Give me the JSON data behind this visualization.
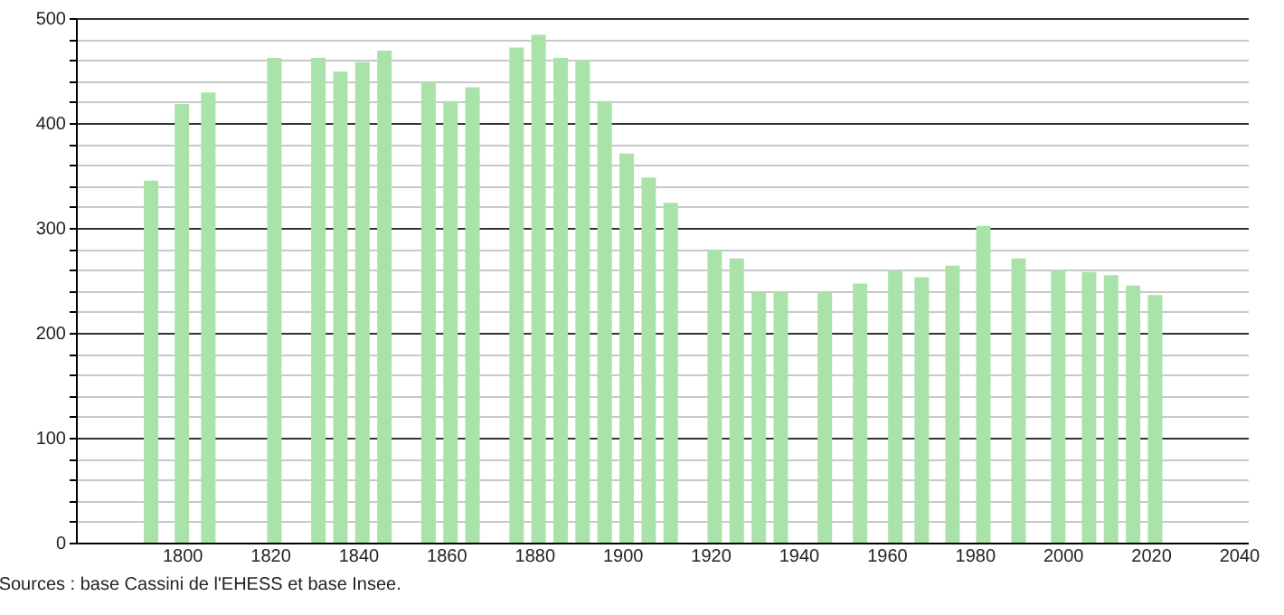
{
  "chart_data": {
    "type": "bar",
    "annotations": [
      "Sources : base Cassini de l'EHESS et base Insee."
    ],
    "x": [
      1793,
      1800,
      1806,
      1821,
      1831,
      1836,
      1841,
      1846,
      1856,
      1861,
      1866,
      1876,
      1881,
      1886,
      1891,
      1896,
      1901,
      1906,
      1911,
      1921,
      1926,
      1931,
      1936,
      1946,
      1954,
      1962,
      1968,
      1975,
      1982,
      1990,
      1999,
      2006,
      2011,
      2016,
      2021
    ],
    "values": [
      345,
      418,
      429,
      462,
      462,
      449,
      458,
      469,
      439,
      421,
      434,
      472,
      484,
      462,
      460,
      421,
      371,
      348,
      324,
      279,
      271,
      239,
      239,
      239,
      247,
      260,
      253,
      264,
      302,
      271,
      260,
      258,
      255,
      245,
      236
    ],
    "color": "#aae3aa",
    "xlim": [
      1778,
      2040
    ],
    "xticks": [
      1800,
      1820,
      1840,
      1860,
      1880,
      1900,
      1920,
      1940,
      1960,
      1980,
      2000,
      2020,
      2040
    ],
    "ylim": [
      0,
      500
    ],
    "yticks": [
      0,
      {
        "value": 20,
        "label": null
      },
      {
        "value": 40,
        "label": null
      },
      {
        "value": 60,
        "label": null
      },
      {
        "value": 80,
        "label": null
      },
      100,
      {
        "value": 120,
        "label": null
      },
      {
        "value": 140,
        "label": null
      },
      {
        "value": 160,
        "label": null
      },
      {
        "value": 180,
        "label": null
      },
      200,
      {
        "value": 220,
        "label": null
      },
      {
        "value": 240,
        "label": null
      },
      {
        "value": 260,
        "label": null
      },
      {
        "value": 280,
        "label": null
      },
      300,
      {
        "value": 320,
        "label": null
      },
      {
        "value": 340,
        "label": null
      },
      {
        "value": 360,
        "label": null
      },
      {
        "value": 380,
        "label": null
      },
      400,
      {
        "value": 420,
        "label": null
      },
      {
        "value": 440,
        "label": null
      },
      {
        "value": 460,
        "label": null
      },
      {
        "value": 480,
        "label": null
      },
      500
    ],
    "grid": "y"
  }
}
